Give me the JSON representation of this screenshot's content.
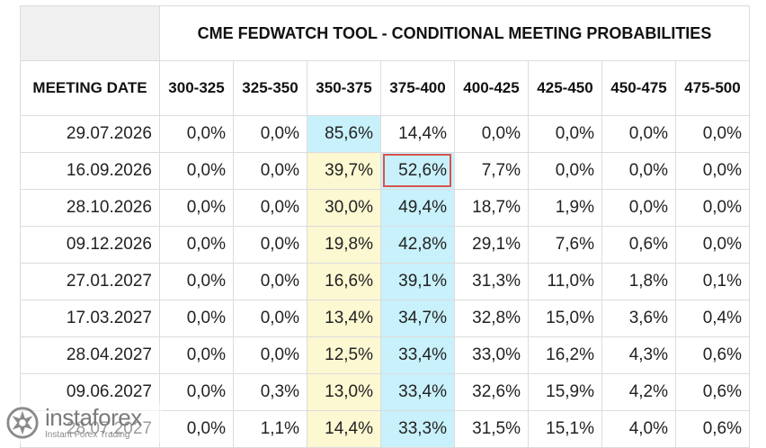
{
  "table": {
    "title": "CME FEDWATCH TOOL - CONDITIONAL MEETING PROBABILITIES",
    "meeting_date_header": "MEETING DATE",
    "columns": [
      "300-325",
      "325-350",
      "350-375",
      "375-400",
      "400-425",
      "425-450",
      "450-475",
      "475-500"
    ],
    "rows": [
      {
        "date": "29.07.2026",
        "values": [
          "0,0%",
          "0,0%",
          "85,6%",
          "14,4%",
          "0,0%",
          "0,0%",
          "0,0%",
          "0,0%"
        ]
      },
      {
        "date": "16.09.2026",
        "values": [
          "0,0%",
          "0,0%",
          "39,7%",
          "52,6%",
          "7,7%",
          "0,0%",
          "0,0%",
          "0,0%"
        ]
      },
      {
        "date": "28.10.2026",
        "values": [
          "0,0%",
          "0,0%",
          "30,0%",
          "49,4%",
          "18,7%",
          "1,9%",
          "0,0%",
          "0,0%"
        ]
      },
      {
        "date": "09.12.2026",
        "values": [
          "0,0%",
          "0,0%",
          "19,8%",
          "42,8%",
          "29,1%",
          "7,6%",
          "0,6%",
          "0,0%"
        ]
      },
      {
        "date": "27.01.2027",
        "values": [
          "0,0%",
          "0,0%",
          "16,6%",
          "39,1%",
          "31,3%",
          "11,0%",
          "1,8%",
          "0,1%"
        ]
      },
      {
        "date": "17.03.2027",
        "values": [
          "0,0%",
          "0,0%",
          "13,4%",
          "34,7%",
          "32,8%",
          "15,0%",
          "3,6%",
          "0,4%"
        ]
      },
      {
        "date": "28.04.2027",
        "values": [
          "0,0%",
          "0,0%",
          "12,5%",
          "33,4%",
          "33,0%",
          "16,2%",
          "4,3%",
          "0,6%"
        ]
      },
      {
        "date": "09.06.2027",
        "values": [
          "0,0%",
          "0,3%",
          "13,0%",
          "33,4%",
          "32,6%",
          "15,9%",
          "4,2%",
          "0,6%"
        ]
      },
      {
        "date": "28.07.2027",
        "values": [
          "0,0%",
          "1,1%",
          "14,4%",
          "33,3%",
          "31,5%",
          "15,1%",
          "4,0%",
          "0,6%"
        ]
      }
    ],
    "highlight_colors": {
      "current_target": "#c8f1fb",
      "lower_target": "#fbf8d2",
      "boxed_cell_border": "#d9534f"
    },
    "boxed_cell": {
      "row": 1,
      "col": 3
    }
  },
  "watermark": {
    "brand": "instaforex",
    "tagline": "Instant Forex Trading",
    "icon": "instaforex-logo-icon"
  }
}
